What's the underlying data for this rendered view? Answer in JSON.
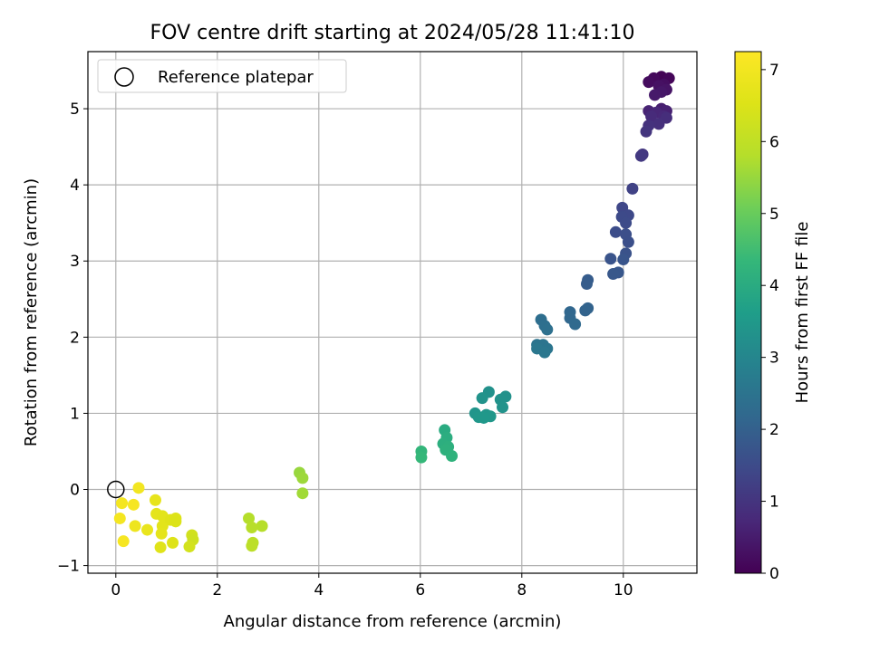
{
  "chart_data": {
    "type": "scatter",
    "title": "FOV centre drift starting at 2024/05/28 11:41:10",
    "xlabel": "Angular distance from reference (arcmin)",
    "ylabel": "Rotation from reference (arcmin)",
    "xlim": [
      -0.55,
      11.45
    ],
    "ylim": [
      -1.1,
      5.75
    ],
    "xticks": [
      "0",
      "2",
      "4",
      "6",
      "8",
      "10"
    ],
    "xtick_values": [
      0,
      2,
      4,
      6,
      8,
      10
    ],
    "yticks": [
      "−1",
      "0",
      "1",
      "2",
      "3",
      "4",
      "5"
    ],
    "ytick_values": [
      -1,
      0,
      1,
      2,
      3,
      4,
      5
    ],
    "grid": true,
    "legend": {
      "position": "upper left",
      "label": "Reference platepar"
    },
    "reference_point": {
      "x": 0,
      "y": 0
    },
    "colorbar": {
      "label": "Hours from first FF file",
      "colormap": "viridis",
      "range": [
        0,
        7.25
      ],
      "ticks": [
        "0",
        "1",
        "2",
        "3",
        "4",
        "5",
        "6",
        "7"
      ],
      "tick_values": [
        0,
        1,
        2,
        3,
        4,
        5,
        6,
        7
      ]
    },
    "points": [
      {
        "x": 10.75,
        "y": 5.42,
        "c": 0.05
      },
      {
        "x": 10.9,
        "y": 5.4,
        "c": 0.1
      },
      {
        "x": 10.6,
        "y": 5.4,
        "c": 0.15
      },
      {
        "x": 10.5,
        "y": 5.35,
        "c": 0.2
      },
      {
        "x": 10.8,
        "y": 5.32,
        "c": 0.25
      },
      {
        "x": 10.7,
        "y": 5.3,
        "c": 0.3
      },
      {
        "x": 10.85,
        "y": 5.25,
        "c": 0.35
      },
      {
        "x": 10.75,
        "y": 5.22,
        "c": 0.4
      },
      {
        "x": 10.62,
        "y": 5.18,
        "c": 0.45
      },
      {
        "x": 10.75,
        "y": 5.0,
        "c": 0.55
      },
      {
        "x": 10.85,
        "y": 4.97,
        "c": 0.6
      },
      {
        "x": 10.5,
        "y": 4.97,
        "c": 0.65
      },
      {
        "x": 10.65,
        "y": 4.95,
        "c": 0.7
      },
      {
        "x": 10.8,
        "y": 4.9,
        "c": 0.75
      },
      {
        "x": 10.55,
        "y": 4.9,
        "c": 0.8
      },
      {
        "x": 10.85,
        "y": 4.88,
        "c": 0.85
      },
      {
        "x": 10.7,
        "y": 4.8,
        "c": 0.9
      },
      {
        "x": 10.5,
        "y": 4.78,
        "c": 0.95
      },
      {
        "x": 10.45,
        "y": 4.7,
        "c": 1.0
      },
      {
        "x": 10.38,
        "y": 4.4,
        "c": 1.05
      },
      {
        "x": 10.35,
        "y": 4.38,
        "c": 1.1
      },
      {
        "x": 10.18,
        "y": 3.95,
        "c": 1.3
      },
      {
        "x": 9.98,
        "y": 3.7,
        "c": 1.4
      },
      {
        "x": 10.1,
        "y": 3.6,
        "c": 1.45
      },
      {
        "x": 9.97,
        "y": 3.58,
        "c": 1.48
      },
      {
        "x": 10.05,
        "y": 3.5,
        "c": 1.5
      },
      {
        "x": 9.85,
        "y": 3.38,
        "c": 1.55
      },
      {
        "x": 10.05,
        "y": 3.35,
        "c": 1.58
      },
      {
        "x": 10.1,
        "y": 3.25,
        "c": 1.6
      },
      {
        "x": 10.05,
        "y": 3.1,
        "c": 1.65
      },
      {
        "x": 9.75,
        "y": 3.03,
        "c": 1.7
      },
      {
        "x": 10.0,
        "y": 3.02,
        "c": 1.72
      },
      {
        "x": 9.9,
        "y": 2.85,
        "c": 1.78
      },
      {
        "x": 9.8,
        "y": 2.83,
        "c": 1.8
      },
      {
        "x": 9.3,
        "y": 2.75,
        "c": 1.9
      },
      {
        "x": 9.28,
        "y": 2.7,
        "c": 1.92
      },
      {
        "x": 9.3,
        "y": 2.38,
        "c": 2.05
      },
      {
        "x": 9.25,
        "y": 2.35,
        "c": 2.08
      },
      {
        "x": 8.95,
        "y": 2.33,
        "c": 2.15
      },
      {
        "x": 8.95,
        "y": 2.25,
        "c": 2.18
      },
      {
        "x": 9.05,
        "y": 2.17,
        "c": 2.22
      },
      {
        "x": 8.38,
        "y": 2.23,
        "c": 2.35
      },
      {
        "x": 8.45,
        "y": 2.15,
        "c": 2.38
      },
      {
        "x": 8.5,
        "y": 2.1,
        "c": 2.4
      },
      {
        "x": 8.3,
        "y": 1.9,
        "c": 2.5
      },
      {
        "x": 8.42,
        "y": 1.9,
        "c": 2.52
      },
      {
        "x": 8.5,
        "y": 1.85,
        "c": 2.55
      },
      {
        "x": 8.3,
        "y": 1.85,
        "c": 2.58
      },
      {
        "x": 8.45,
        "y": 1.8,
        "c": 2.6
      },
      {
        "x": 7.35,
        "y": 1.28,
        "c": 3.3
      },
      {
        "x": 7.22,
        "y": 1.2,
        "c": 3.35
      },
      {
        "x": 7.68,
        "y": 1.22,
        "c": 3.3
      },
      {
        "x": 7.58,
        "y": 1.18,
        "c": 3.32
      },
      {
        "x": 7.62,
        "y": 1.08,
        "c": 3.35
      },
      {
        "x": 7.08,
        "y": 1.0,
        "c": 3.4
      },
      {
        "x": 7.3,
        "y": 0.98,
        "c": 3.42
      },
      {
        "x": 7.38,
        "y": 0.96,
        "c": 3.44
      },
      {
        "x": 7.15,
        "y": 0.95,
        "c": 3.45
      },
      {
        "x": 7.25,
        "y": 0.94,
        "c": 3.47
      },
      {
        "x": 6.48,
        "y": 0.78,
        "c": 4.0
      },
      {
        "x": 6.52,
        "y": 0.68,
        "c": 4.05
      },
      {
        "x": 6.45,
        "y": 0.6,
        "c": 4.1
      },
      {
        "x": 6.55,
        "y": 0.56,
        "c": 4.12
      },
      {
        "x": 6.5,
        "y": 0.52,
        "c": 4.15
      },
      {
        "x": 6.62,
        "y": 0.44,
        "c": 4.2
      },
      {
        "x": 6.02,
        "y": 0.5,
        "c": 4.3
      },
      {
        "x": 6.02,
        "y": 0.42,
        "c": 4.35
      },
      {
        "x": 3.62,
        "y": 0.22,
        "c": 5.5
      },
      {
        "x": 3.68,
        "y": 0.15,
        "c": 5.55
      },
      {
        "x": 3.68,
        "y": -0.05,
        "c": 5.6
      },
      {
        "x": 2.62,
        "y": -0.38,
        "c": 5.8
      },
      {
        "x": 2.88,
        "y": -0.48,
        "c": 5.82
      },
      {
        "x": 2.68,
        "y": -0.5,
        "c": 5.85
      },
      {
        "x": 2.7,
        "y": -0.7,
        "c": 5.9
      },
      {
        "x": 2.68,
        "y": -0.74,
        "c": 5.92
      },
      {
        "x": 0.45,
        "y": 0.02,
        "c": 7.0
      },
      {
        "x": 0.12,
        "y": -0.18,
        "c": 7.05
      },
      {
        "x": 0.35,
        "y": -0.2,
        "c": 7.1
      },
      {
        "x": 0.08,
        "y": -0.38,
        "c": 7.05
      },
      {
        "x": 0.15,
        "y": -0.68,
        "c": 7.1
      },
      {
        "x": 0.38,
        "y": -0.48,
        "c": 6.9
      },
      {
        "x": 0.62,
        "y": -0.53,
        "c": 6.8
      },
      {
        "x": 0.78,
        "y": -0.14,
        "c": 6.75
      },
      {
        "x": 0.8,
        "y": -0.32,
        "c": 6.7
      },
      {
        "x": 0.92,
        "y": -0.35,
        "c": 6.65
      },
      {
        "x": 0.92,
        "y": -0.48,
        "c": 6.65
      },
      {
        "x": 0.9,
        "y": -0.58,
        "c": 6.7
      },
      {
        "x": 0.88,
        "y": -0.76,
        "c": 6.6
      },
      {
        "x": 1.08,
        "y": -0.4,
        "c": 6.6
      },
      {
        "x": 1.18,
        "y": -0.38,
        "c": 6.55
      },
      {
        "x": 1.18,
        "y": -0.42,
        "c": 6.5
      },
      {
        "x": 1.12,
        "y": -0.7,
        "c": 6.55
      },
      {
        "x": 1.5,
        "y": -0.6,
        "c": 6.3
      },
      {
        "x": 1.52,
        "y": -0.66,
        "c": 6.25
      },
      {
        "x": 1.45,
        "y": -0.75,
        "c": 6.35
      }
    ]
  }
}
